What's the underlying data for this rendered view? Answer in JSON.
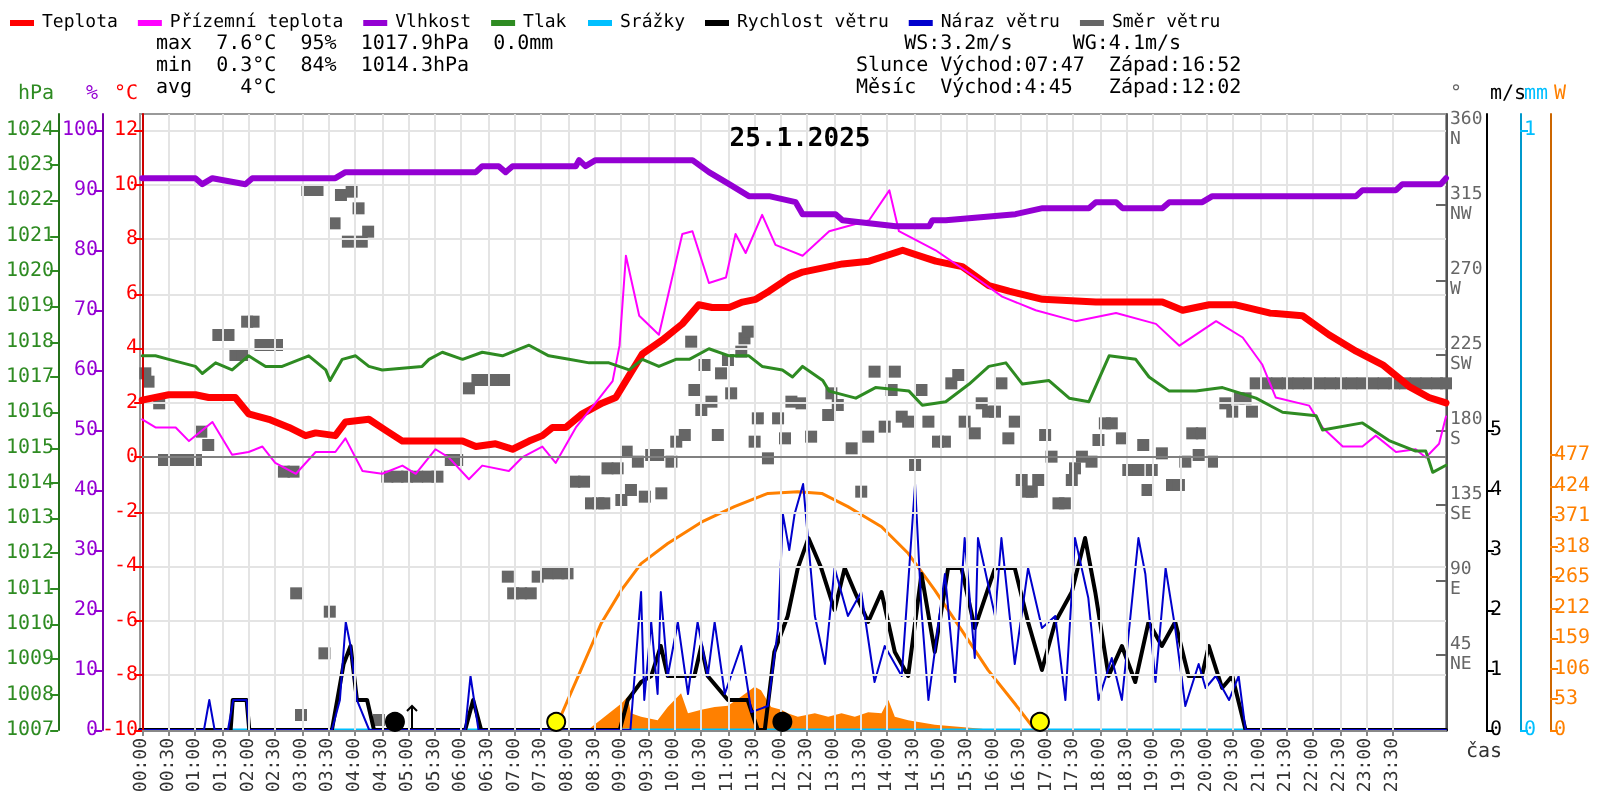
{
  "chart_data": [
    {
      "type": "line",
      "title": "25.1.2025",
      "xlabel": "čas",
      "ylabel": "°C",
      "y2label": "%",
      "y3label": "hPa",
      "annotations": [
        "max  7.6°C  95%  1017.9hPa  0.0mm",
        "min  0.3°C  84%  1014.3hPa",
        "avg    4°C",
        "    WS:3.2m/s     WG:4.1m/s",
        "Slunce Východ:07:47  Západ:16:52",
        "Měsíc  Východ:4:45   Západ:12:02"
      ],
      "xlim": [
        0,
        24.5
      ],
      "xticks": [
        {
          "value": 0,
          "label": "00:00"
        },
        {
          "value": 0.5,
          "label": "00:30"
        },
        {
          "value": 1,
          "label": "01:00"
        },
        {
          "value": 1.5,
          "label": "01:30"
        },
        {
          "value": 2,
          "label": "02:00"
        },
        {
          "value": 2.5,
          "label": "02:30"
        },
        {
          "value": 3,
          "label": "03:00"
        },
        {
          "value": 3.5,
          "label": "03:30"
        },
        {
          "value": 4,
          "label": "04:00"
        },
        {
          "value": 4.5,
          "label": "04:30"
        },
        {
          "value": 5,
          "label": "05:00"
        },
        {
          "value": 5.5,
          "label": "05:30"
        },
        {
          "value": 6,
          "label": "06:00"
        },
        {
          "value": 6.5,
          "label": "06:30"
        },
        {
          "value": 7,
          "label": "07:00"
        },
        {
          "value": 7.5,
          "label": "07:30"
        },
        {
          "value": 8,
          "label": "08:00"
        },
        {
          "value": 8.5,
          "label": "08:30"
        },
        {
          "value": 9,
          "label": "09:00"
        },
        {
          "value": 9.5,
          "label": "09:30"
        },
        {
          "value": 10,
          "label": "10:00"
        },
        {
          "value": 10.5,
          "label": "10:30"
        },
        {
          "value": 11,
          "label": "11:00"
        },
        {
          "value": 11.5,
          "label": "11:30"
        },
        {
          "value": 12,
          "label": "12:00"
        },
        {
          "value": 12.5,
          "label": "12:30"
        },
        {
          "value": 13,
          "label": "13:00"
        },
        {
          "value": 13.5,
          "label": "13:30"
        },
        {
          "value": 14,
          "label": "14:00"
        },
        {
          "value": 14.5,
          "label": "14:30"
        },
        {
          "value": 15,
          "label": "15:00"
        },
        {
          "value": 15.5,
          "label": "15:30"
        },
        {
          "value": 16,
          "label": "16:00"
        },
        {
          "value": 16.5,
          "label": "16:30"
        },
        {
          "value": 17,
          "label": "17:00"
        },
        {
          "value": 17.5,
          "label": "17:30"
        },
        {
          "value": 18,
          "label": "18:00"
        },
        {
          "value": 18.5,
          "label": "18:30"
        },
        {
          "value": 19,
          "label": "19:00"
        },
        {
          "value": 19.5,
          "label": "19:30"
        },
        {
          "value": 20,
          "label": "20:00"
        },
        {
          "value": 20.5,
          "label": "20:30"
        },
        {
          "value": 21,
          "label": "21:00"
        },
        {
          "value": 21.5,
          "label": "21:30"
        },
        {
          "value": 22,
          "label": "22:00"
        },
        {
          "value": 22.5,
          "label": "22:30"
        },
        {
          "value": 23,
          "label": "23:00"
        },
        {
          "value": 23.5,
          "label": "23:30"
        }
      ],
      "ylim": [
        -10,
        12.6
      ],
      "yticks": [
        -10,
        -8,
        -6,
        -4,
        -2,
        0,
        2,
        4,
        6,
        8,
        10,
        12
      ],
      "y2lim": [
        0,
        102.7
      ],
      "y2ticks": [
        0,
        10,
        20,
        30,
        40,
        50,
        60,
        70,
        80,
        90,
        100
      ],
      "y3lim": [
        1007,
        1024.45
      ],
      "y3ticks": [
        1007,
        1008,
        1009,
        1010,
        1011,
        1012,
        1013,
        1014,
        1015,
        1016,
        1017,
        1018,
        1019,
        1020,
        1021,
        1022,
        1023,
        1024
      ],
      "grid": true,
      "legend": "top",
      "marker": "none",
      "ref_lines": [
        {
          "axis": "y",
          "value": 0,
          "color": "#808080"
        }
      ],
      "series": [
        {
          "name": "Teplota",
          "color": "#ff0000",
          "x": [
            0,
            0.5,
            1,
            1.25,
            1.63,
            1.75,
            2,
            2.38,
            2.76,
            3.07,
            3.26,
            3.63,
            3.82,
            4.26,
            4.57,
            4.89,
            5.39,
            6.02,
            6.27,
            6.64,
            6.96,
            7.27,
            7.52,
            7.71,
            7.96,
            8.27,
            8.65,
            8.9,
            9.15,
            9.4,
            9.77,
            10.15,
            10.46,
            10.71,
            11.03,
            11.28,
            11.53,
            11.78,
            12.16,
            12.41,
            13.16,
            13.66,
            14.29,
            14.91,
            15.41,
            15.91,
            16.29,
            16.92,
            17.92,
            19.17,
            19.55,
            20.05,
            20.55,
            21.18,
            21.8,
            22.3,
            22.81,
            23.31,
            23.81,
            24.18,
            24.5
          ],
          "values": [
            2.1,
            2.3,
            2.3,
            2.2,
            2.2,
            2.2,
            1.6,
            1.4,
            1.1,
            0.8,
            0.9,
            0.8,
            1.3,
            1.4,
            1.0,
            0.6,
            0.6,
            0.6,
            0.4,
            0.5,
            0.3,
            0.6,
            0.8,
            1.1,
            1.1,
            1.6,
            2.0,
            2.2,
            3.0,
            3.8,
            4.3,
            4.9,
            5.6,
            5.5,
            5.5,
            5.7,
            5.8,
            6.1,
            6.6,
            6.8,
            7.1,
            7.2,
            7.6,
            7.2,
            7.0,
            6.3,
            6.1,
            5.8,
            5.7,
            5.7,
            5.4,
            5.6,
            5.6,
            5.3,
            5.2,
            4.5,
            3.9,
            3.4,
            2.6,
            2.2,
            2.0
          ]
        },
        {
          "name": "Přízemní teplota",
          "color": "#ff00ff",
          "x": [
            0,
            0.25,
            0.63,
            0.88,
            1.13,
            1.32,
            1.69,
            2,
            2.26,
            2.5,
            2.89,
            3.26,
            3.63,
            3.82,
            4.14,
            4.51,
            4.89,
            5.14,
            5.51,
            5.76,
            6.14,
            6.39,
            6.89,
            7.14,
            7.52,
            7.77,
            8.15,
            8.52,
            8.84,
            8.97,
            9.09,
            9.34,
            9.71,
            10.15,
            10.34,
            10.65,
            10.97,
            11.15,
            11.34,
            11.65,
            11.9,
            12.41,
            12.91,
            13.66,
            14.04,
            14.22,
            14.91,
            15.66,
            16.16,
            16.79,
            17.54,
            18.3,
            19.05,
            19.49,
            20.18,
            20.68,
            21.05,
            21.3,
            21.93,
            22.18,
            22.56,
            22.93,
            23.18,
            23.56,
            23.93,
            24.12,
            24.37,
            24.5
          ],
          "values": [
            1.4,
            1.1,
            1.1,
            0.6,
            1.0,
            1.3,
            0.1,
            0.2,
            0.4,
            -0.2,
            -0.6,
            0.2,
            0.2,
            0.7,
            -0.5,
            -0.6,
            -0.3,
            -0.6,
            0.3,
            0.0,
            -0.8,
            -0.3,
            -0.5,
            0.0,
            0.4,
            -0.2,
            1.1,
            2.0,
            2.8,
            4.1,
            7.4,
            5.2,
            4.5,
            8.2,
            8.3,
            6.4,
            6.6,
            8.2,
            7.5,
            8.9,
            7.8,
            7.4,
            8.3,
            8.7,
            9.8,
            8.3,
            7.6,
            6.6,
            5.9,
            5.4,
            5.0,
            5.3,
            4.9,
            4.1,
            5.0,
            4.4,
            3.4,
            2.2,
            1.9,
            1.1,
            0.4,
            0.4,
            0.8,
            0.2,
            0.3,
            0.0,
            0.5,
            1.5
          ]
        },
        {
          "name": "Vlhkost",
          "color": "#9400d3",
          "axis": "y2",
          "x": [
            0,
            1.0,
            1.13,
            1.32,
            1.94,
            2.07,
            3.63,
            3.82,
            6.27,
            6.39,
            6.7,
            6.83,
            6.96,
            8.15,
            8.21,
            8.33,
            8.52,
            10.34,
            10.65,
            11.03,
            11.4,
            11.78,
            12.28,
            12.41,
            13.03,
            13.16,
            14.16,
            14.79,
            14.85,
            15.1,
            16.41,
            16.92,
            17.79,
            17.92,
            18.3,
            18.42,
            19.17,
            19.3,
            19.92,
            20.11,
            20.3,
            21.18,
            21.3,
            22.81,
            22.93,
            23.56,
            23.68,
            24.4,
            24.5
          ],
          "values": [
            92,
            92,
            91,
            92,
            91,
            92,
            92,
            93,
            93,
            94,
            94,
            93,
            94,
            94,
            95,
            94,
            95,
            95,
            93,
            91,
            89,
            89,
            88,
            86,
            86,
            85,
            84,
            84,
            85,
            85,
            86,
            87,
            87,
            88,
            88,
            87,
            87,
            88,
            88,
            89,
            89,
            89,
            89,
            89,
            90,
            90,
            91,
            91,
            92
          ]
        },
        {
          "name": "Tlak",
          "color": "#2e8b22",
          "axis": "y3",
          "x": [
            0,
            0.25,
            0.5,
            0.75,
            1.0,
            1.13,
            1.38,
            1.69,
            2.0,
            2.32,
            2.63,
            3.13,
            3.45,
            3.53,
            3.76,
            4.01,
            4.26,
            4.51,
            5.26,
            5.39,
            5.64,
            6.02,
            6.39,
            6.77,
            7.27,
            7.64,
            8.02,
            8.4,
            8.77,
            9.15,
            9.4,
            9.71,
            10.03,
            10.28,
            10.65,
            11.03,
            11.4,
            11.65,
            12.03,
            12.22,
            12.41,
            12.79,
            12.91,
            13.41,
            13.78,
            14.41,
            14.66,
            15.1,
            15.54,
            15.91,
            16.23,
            16.54,
            17.04,
            17.42,
            17.79,
            18.17,
            18.67,
            18.92,
            19.3,
            19.8,
            20.3,
            20.93,
            21.43,
            22.06,
            22.18,
            22.93,
            23.43,
            23.93,
            24.12,
            24.25,
            24.5
          ],
          "values": [
            1017.6,
            1017.6,
            1017.5,
            1017.4,
            1017.3,
            1017.1,
            1017.4,
            1017.2,
            1017.6,
            1017.3,
            1017.3,
            1017.6,
            1017.2,
            1016.9,
            1017.5,
            1017.6,
            1017.3,
            1017.2,
            1017.3,
            1017.5,
            1017.7,
            1017.5,
            1017.7,
            1017.6,
            1017.9,
            1017.6,
            1017.5,
            1017.4,
            1017.4,
            1017.2,
            1017.5,
            1017.3,
            1017.5,
            1017.5,
            1017.8,
            1017.6,
            1017.6,
            1017.3,
            1017.2,
            1017.0,
            1017.3,
            1016.9,
            1016.6,
            1016.4,
            1016.7,
            1016.6,
            1016.2,
            1016.3,
            1016.8,
            1017.3,
            1017.4,
            1016.8,
            1016.9,
            1016.4,
            1016.3,
            1017.6,
            1017.5,
            1017.0,
            1016.6,
            1016.6,
            1016.7,
            1016.4,
            1016.0,
            1015.9,
            1015.5,
            1015.7,
            1015.2,
            1014.9,
            1014.9,
            1014.3,
            1014.5
          ]
        },
        {
          "color": "#ffff00",
          "type": "scatter",
          "marker": "circle",
          "x": [
            7.78,
            16.87
          ],
          "values": [
            -9.7,
            -9.7
          ]
        },
        {
          "color": "#000000",
          "type": "scatter",
          "marker": "circle",
          "x": [
            4.75,
            12.03
          ],
          "values": [
            -9.7,
            -9.7
          ]
        }
      ]
    },
    {
      "type": "line",
      "ylabel": "°",
      "y2label": "m/s",
      "y3label": "mm",
      "xlim": [
        0,
        24.5
      ],
      "tick_labels": "y",
      "legend": "top",
      "marker": "none",
      "ylim": [
        0,
        369.6
      ],
      "yticks": [
        {
          "value": 45,
          "label": "45\nNE"
        },
        {
          "value": 90,
          "label": "90\nE"
        },
        {
          "value": 135,
          "label": "135\nSE"
        },
        {
          "value": 180,
          "label": "180\nS"
        },
        {
          "value": 225,
          "label": "225\nSW"
        },
        {
          "value": 270,
          "label": "270\nW"
        },
        {
          "value": 315,
          "label": "315\nNW"
        },
        {
          "value": 360,
          "label": "360\nN"
        }
      ],
      "y2lim": [
        0,
        10.27
      ],
      "y2ticks": [
        0,
        1,
        2,
        3,
        4,
        5
      ],
      "y3lim": [
        0,
        1.027
      ],
      "y3ticks": [
        0,
        1
      ],
      "series": [
        {
          "name": "Srážky",
          "color": "#00bfff",
          "axis": "y3",
          "x": [
            0,
            20.74
          ],
          "values": [
            0,
            0
          ]
        },
        {
          "name": "Rychlost větru",
          "color": "#000000",
          "axis": "y2",
          "x": [
            0,
            1.7,
            1.74,
            2.0,
            2.05,
            3.6,
            3.82,
            3.95,
            4.07,
            4.26,
            4.39,
            6.1,
            6.25,
            6.4,
            9.0,
            9.15,
            9.4,
            9.59,
            9.77,
            9.9,
            10.4,
            10.53,
            10.65,
            11.03,
            11.4,
            11.59,
            11.72,
            11.9,
            12.15,
            12.34,
            12.54,
            12.78,
            13.03,
            13.22,
            13.41,
            13.66,
            13.91,
            14.16,
            14.41,
            14.66,
            14.91,
            15.16,
            15.41,
            15.66,
            16.04,
            16.41,
            16.66,
            16.92,
            17.17,
            17.48,
            17.73,
            17.92,
            18.17,
            18.42,
            18.67,
            18.92,
            19.17,
            19.42,
            19.67,
            19.92,
            20.05,
            20.3,
            20.49,
            20.74,
            24.5
          ],
          "values": [
            0,
            0,
            0.5,
            0.5,
            0,
            0,
            1.1,
            1.4,
            0.5,
            0.5,
            0,
            0,
            0.5,
            0,
            0,
            0.5,
            0.8,
            0.9,
            1.4,
            0.9,
            0.9,
            1.4,
            0.9,
            0.5,
            0.5,
            0,
            0,
            1.3,
            1.9,
            2.7,
            3.2,
            2.7,
            2.0,
            2.7,
            2.3,
            1.8,
            2.3,
            1.3,
            0.9,
            2.6,
            1.3,
            2.7,
            2.7,
            1.7,
            2.7,
            2.7,
            1.8,
            1.0,
            1.8,
            2.3,
            3.2,
            2.3,
            0.9,
            1.4,
            0.8,
            1.8,
            1.4,
            1.8,
            0.9,
            0.9,
            1.4,
            0.7,
            0.9,
            0,
            0
          ]
        },
        {
          "name": "Náraz větru",
          "color": "#0000cd",
          "axis": "y2",
          "x": [
            0,
            1.2,
            1.3,
            1.4,
            1.65,
            1.75,
            2.0,
            2.05,
            3.6,
            3.75,
            3.86,
            3.95,
            4.07,
            4.3,
            6.1,
            6.2,
            6.35,
            9.2,
            9.4,
            9.46,
            9.59,
            9.71,
            9.77,
            9.9,
            10.09,
            10.28,
            10.46,
            10.65,
            10.78,
            10.97,
            11.28,
            11.47,
            11.78,
            11.97,
            12.06,
            12.18,
            12.28,
            12.44,
            12.66,
            12.85,
            13.03,
            13.28,
            13.53,
            13.78,
            13.97,
            14.29,
            14.54,
            14.66,
            14.79,
            15.1,
            15.29,
            15.47,
            15.66,
            15.72,
            16.04,
            16.16,
            16.41,
            16.66,
            16.92,
            17.17,
            17.36,
            17.54,
            17.79,
            17.98,
            18.23,
            18.42,
            18.73,
            18.86,
            19.05,
            19.24,
            19.42,
            19.61,
            19.86,
            19.99,
            20.18,
            20.43,
            20.61,
            20.74,
            24.5
          ],
          "values": [
            0,
            0,
            0.5,
            0,
            0,
            0.5,
            0.5,
            0,
            0,
            0.5,
            1.8,
            1.4,
            0.5,
            0,
            0,
            0.9,
            0,
            0,
            2.3,
            0.5,
            1.8,
            0.6,
            2.3,
            0.9,
            1.8,
            0.6,
            1.8,
            0.9,
            1.8,
            0.6,
            1.4,
            0.3,
            0.4,
            1.7,
            3.6,
            3.0,
            3.6,
            4.1,
            1.9,
            1.1,
            2.7,
            1.9,
            2.3,
            0.8,
            1.4,
            0.9,
            4.1,
            2.0,
            0.5,
            2.6,
            0.8,
            3.2,
            1.2,
            3.2,
            1.9,
            3.2,
            1.1,
            2.7,
            1.7,
            1.9,
            0.5,
            3.2,
            2.2,
            0.5,
            1.2,
            0.5,
            3.2,
            2.6,
            0.8,
            2.7,
            1.7,
            0.4,
            1.1,
            0.7,
            0.9,
            0.5,
            0.9,
            0,
            0
          ]
        },
        {
          "name": "Směr větru",
          "color": "#666666",
          "type": "scatter",
          "marker": "square",
          "x": [
            0.1,
            0.16,
            0.36,
            0.45,
            0.65,
            0.85,
            1.05,
            1.15,
            1.28,
            1.47,
            1.66,
            1.79,
            1.92,
            2.01,
            2.13,
            2.26,
            2.42,
            2.57,
            2.7,
            2.88,
            2.93,
            3.02,
            3.14,
            3.33,
            3.46,
            3.56,
            3.65,
            3.77,
            3.9,
            3.97,
            4.1,
            4.16,
            4.28,
            4.48,
            4.64,
            4.83,
            5.01,
            5.2,
            5.4,
            5.58,
            5.83,
            5.95,
            6.17,
            6.33,
            6.5,
            6.67,
            6.83,
            6.9,
            7.0,
            7.15,
            7.33,
            7.46,
            7.65,
            7.85,
            8.02,
            8.15,
            8.33,
            8.46,
            8.6,
            8.71,
            8.77,
            8.96,
            9.03,
            9.13,
            9.21,
            9.34,
            9.47,
            9.59,
            9.72,
            9.78,
            9.97,
            10.06,
            10.22,
            10.34,
            10.4,
            10.53,
            10.59,
            10.72,
            10.84,
            10.9,
            11.03,
            11.09,
            11.28,
            11.34,
            11.4,
            11.53,
            11.59,
            11.78,
            11.97,
            12.1,
            12.22,
            12.41,
            12.59,
            12.91,
            12.97,
            13.09,
            13.35,
            13.53,
            13.66,
            13.78,
            13.97,
            14.1,
            14.16,
            14.29,
            14.41,
            14.54,
            14.66,
            14.79,
            14.97,
            15.1,
            15.22,
            15.35,
            15.47,
            15.66,
            15.79,
            15.91,
            16.04,
            16.16,
            16.29,
            16.41,
            16.54,
            16.66,
            16.73,
            16.85,
            16.98,
            17.1,
            17.23,
            17.35,
            17.48,
            17.54,
            17.67,
            17.85,
            17.98,
            18.1,
            18.23,
            18.42,
            18.54,
            18.73,
            18.82,
            18.9,
            18.98,
            19.17,
            19.36,
            19.49,
            19.61,
            19.74,
            19.86,
            19.92,
            20.11,
            20.36,
            20.49,
            20.61,
            20.74,
            20.86,
            20.93,
            21.13,
            21.33,
            21.53,
            21.73,
            21.93,
            22.13,
            22.33,
            22.53,
            22.73,
            22.93,
            23.13,
            23.33,
            23.53,
            23.73,
            23.93,
            24.13,
            24.33,
            24.5
          ],
          "values": [
            214,
            209,
            196,
            162,
            162,
            162,
            162,
            179,
            171,
            237,
            237,
            225,
            225,
            245,
            245,
            231,
            231,
            231,
            155,
            155,
            82,
            9,
            324,
            324,
            46,
            71,
            304,
            321,
            293,
            323,
            313,
            293,
            299,
            6,
            152,
            152,
            152,
            152,
            152,
            152,
            162,
            162,
            205,
            210,
            210,
            210,
            210,
            92,
            82,
            82,
            82,
            92,
            94,
            94,
            94,
            149,
            149,
            136,
            136,
            136,
            157,
            157,
            138,
            167,
            144,
            161,
            140,
            165,
            165,
            142,
            161,
            173,
            177,
            233,
            204,
            192,
            219,
            197,
            177,
            214,
            222,
            202,
            227,
            235,
            239,
            173,
            187,
            163,
            187,
            175,
            197,
            196,
            176,
            189,
            202,
            195,
            169,
            143,
            176,
            215,
            182,
            204,
            215,
            188,
            185,
            159,
            204,
            185,
            173,
            173,
            208,
            213,
            185,
            178,
            196,
            191,
            191,
            208,
            175,
            185,
            150,
            143,
            143,
            150,
            177,
            164,
            136,
            136,
            150,
            157,
            164,
            161,
            174,
            184,
            184,
            175,
            156,
            156,
            171,
            144,
            156,
            166,
            147,
            147,
            161,
            178,
            165,
            178,
            161,
            196,
            191,
            199,
            199,
            191,
            208,
            208,
            208,
            208,
            208,
            208,
            208,
            208,
            208,
            208,
            208,
            208,
            208,
            208,
            208,
            208,
            208,
            208,
            208
          ]
        }
      ]
    },
    {
      "type": "area",
      "ylabel": "W",
      "xlim": [
        0,
        24.5
      ],
      "tick_labels": "y",
      "marker": "none",
      "ylim": [
        0,
        1070
      ],
      "yticks": [
        0,
        53,
        106,
        159,
        212,
        265,
        318,
        371,
        424,
        477
      ],
      "series": [
        {
          "color": "#ff8000",
          "x": [
            8.4,
            9.03,
            9.15,
            9.21,
            9.4,
            9.71,
            9.9,
            10.15,
            10.28,
            10.53,
            10.78,
            11.03,
            11.28,
            11.53,
            11.65,
            11.84,
            12.03,
            12.15,
            12.34,
            12.66,
            12.91,
            13.16,
            13.41,
            13.66,
            13.91,
            14.04,
            14.16,
            14.41,
            14.91,
            15.79,
            15.91
          ],
          "values": [
            0,
            46,
            58,
            29,
            23,
            17,
            40,
            64,
            29,
            35,
            40,
            42,
            58,
            75,
            69,
            40,
            35,
            29,
            23,
            29,
            23,
            29,
            23,
            31,
            29,
            52,
            23,
            17,
            9,
            2,
            0
          ]
        },
        {
          "color": "#ff8000",
          "type": "line",
          "x": [
            7.78,
            8.27,
            8.65,
            9.03,
            9.4,
            9.9,
            10.53,
            11.15,
            11.78,
            12.34,
            12.79,
            13.28,
            13.91,
            14.41,
            14.91,
            15.41,
            15.91,
            16.41,
            16.79
          ],
          "values": [
            0,
            104,
            185,
            243,
            289,
            324,
            361,
            388,
            411,
            414,
            411,
            388,
            353,
            307,
            243,
            174,
            104,
            46,
            0
          ]
        }
      ]
    }
  ]
}
